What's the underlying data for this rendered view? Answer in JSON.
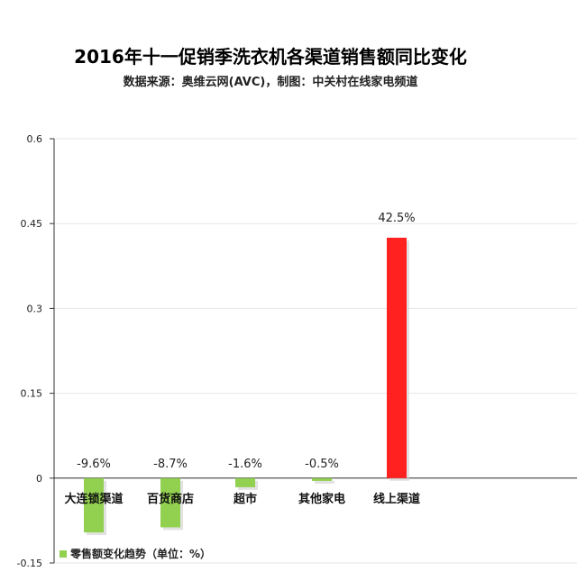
{
  "chart_data": {
    "type": "bar",
    "title": "2016年十一促销季洗衣机各渠道销售额同比变化",
    "subtitle": "数据来源：奥维云网(AVC)，制图：中关村在线家电频道",
    "categories": [
      "大连锁渠道",
      "百货商店",
      "超市",
      "其他家电",
      "线上渠道"
    ],
    "series": [
      {
        "name": "零售额变化趋势（单位：%）",
        "values": [
          -0.096,
          -0.087,
          -0.016,
          -0.005,
          0.425
        ],
        "data_labels": [
          "-9.6%",
          "-8.7%",
          "-1.6%",
          "-0.5%",
          "42.5%"
        ]
      }
    ],
    "y_ticks": [
      "0.6",
      "0.45",
      "0.3",
      "0.15",
      "0",
      "-0.15"
    ],
    "ylim": [
      -0.15,
      0.6
    ],
    "grid": true,
    "legend_position": "bottom-left",
    "colors": {
      "negative": "#92d050",
      "positive": "#ff2020",
      "grid": "#e6e6e6",
      "axis": "#333333"
    }
  }
}
